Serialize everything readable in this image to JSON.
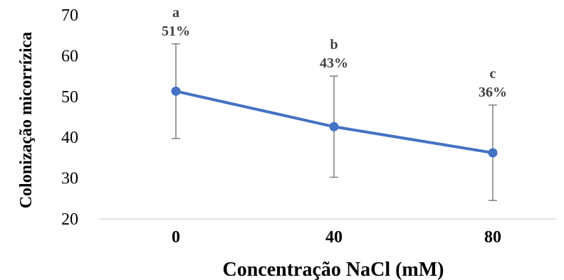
{
  "chart_data": {
    "type": "line",
    "xlabel": "Concentração NaCl (mM)",
    "ylabel": "Colonização micorrízica",
    "categories": [
      "0",
      "40",
      "80"
    ],
    "ylim": [
      20,
      70
    ],
    "yticks": [
      "20",
      "30",
      "40",
      "50",
      "60",
      "70"
    ],
    "series": [
      {
        "values": [
          51.3,
          42.6,
          36.2
        ],
        "error": [
          11.6,
          12.4,
          11.7
        ],
        "letters": [
          "a",
          "b",
          "c"
        ],
        "labels": [
          "51%",
          "43%",
          "36%"
        ],
        "color": "#4472C4"
      }
    ],
    "error_bar_color": "#808080",
    "grid": false,
    "legend": "none"
  }
}
